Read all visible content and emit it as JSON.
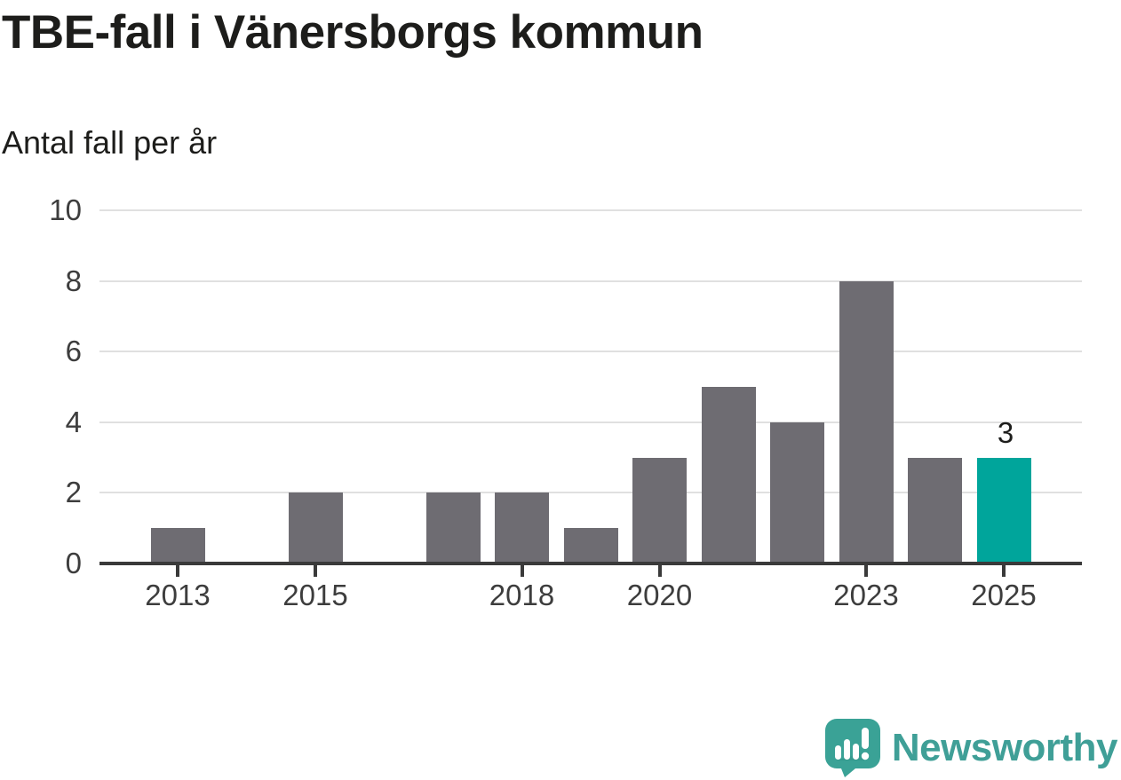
{
  "header": {
    "title": "TBE-fall i Vänersborgs kommun",
    "subtitle": "Antal fall per år"
  },
  "chart_data": {
    "type": "bar",
    "title": "TBE-fall i Vänersborgs kommun",
    "subtitle": "Antal fall per år",
    "xlabel": "",
    "ylabel": "Antal fall per år",
    "categories": [
      2013,
      2014,
      2015,
      2016,
      2017,
      2018,
      2019,
      2020,
      2021,
      2022,
      2023,
      2024,
      2025
    ],
    "values": [
      1,
      0,
      2,
      0,
      2,
      2,
      1,
      3,
      5,
      4,
      8,
      3,
      3
    ],
    "ylim": [
      0,
      10
    ],
    "ytick_values": [
      0,
      2,
      4,
      6,
      8,
      10
    ],
    "xtick_labels": [
      "2013",
      "2015",
      "2018",
      "2020",
      "2023",
      "2025"
    ],
    "grid": "horizontal",
    "legend": "none",
    "bar_color": "#6e6c72",
    "highlight": {
      "year": 2025,
      "value_label": "3",
      "color": "#00a59b"
    }
  },
  "branding": {
    "wordmark": "Newsworthy",
    "logo_icon": "newsworthy-chart-bubble-icon",
    "brand_color": "#3f9f97",
    "logo_mark_color": "#3aa296"
  },
  "colors": {
    "bar_default": "#6e6c72",
    "bar_highlight": "#00a59b",
    "gridline": "#e0e0e0",
    "axis": "#3a3a3a",
    "text_primary": "#1d1d1b",
    "text_axis": "#3d3d3d"
  }
}
